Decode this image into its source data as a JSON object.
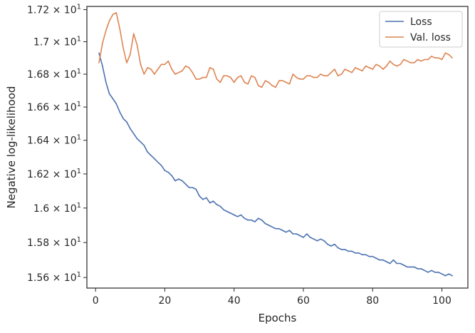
{
  "chart_data": {
    "type": "line",
    "title": "",
    "xlabel": "Epochs",
    "ylabel": "Negative log-likelihood",
    "xlim": [
      -2.5,
      107.5
    ],
    "ylim": [
      15.54,
      17.22
    ],
    "y_scale": "log",
    "grid": false,
    "legend_position": "top-right",
    "x_ticks": [
      {
        "value": 0,
        "label": "0"
      },
      {
        "value": 20,
        "label": "20"
      },
      {
        "value": 40,
        "label": "40"
      },
      {
        "value": 60,
        "label": "60"
      },
      {
        "value": 80,
        "label": "80"
      },
      {
        "value": 100,
        "label": "100"
      }
    ],
    "y_ticks": [
      {
        "value": 15.6,
        "mantissa": "1.56",
        "exponent": "1"
      },
      {
        "value": 15.8,
        "mantissa": "1.58",
        "exponent": "1"
      },
      {
        "value": 16.0,
        "mantissa": "1.6",
        "exponent": "1"
      },
      {
        "value": 16.2,
        "mantissa": "1.62",
        "exponent": "1"
      },
      {
        "value": 16.4,
        "mantissa": "1.64",
        "exponent": "1"
      },
      {
        "value": 16.6,
        "mantissa": "1.66",
        "exponent": "1"
      },
      {
        "value": 16.8,
        "mantissa": "1.68",
        "exponent": "1"
      },
      {
        "value": 17.0,
        "mantissa": "1.7",
        "exponent": "1"
      },
      {
        "value": 17.2,
        "mantissa": "1.72",
        "exponent": "1"
      }
    ],
    "series": [
      {
        "name": "Loss",
        "color": "#4c72b0",
        "x": [
          1,
          2,
          3,
          4,
          5,
          6,
          7,
          8,
          9,
          10,
          11,
          12,
          13,
          14,
          15,
          16,
          17,
          18,
          19,
          20,
          21,
          22,
          23,
          24,
          25,
          26,
          27,
          28,
          29,
          30,
          31,
          32,
          33,
          34,
          35,
          36,
          37,
          38,
          39,
          40,
          41,
          42,
          43,
          44,
          45,
          46,
          47,
          48,
          49,
          50,
          51,
          52,
          53,
          54,
          55,
          56,
          57,
          58,
          59,
          60,
          61,
          62,
          63,
          64,
          65,
          66,
          67,
          68,
          69,
          70,
          71,
          72,
          73,
          74,
          75,
          76,
          77,
          78,
          79,
          80,
          81,
          82,
          83,
          84,
          85,
          86,
          87,
          88,
          89,
          90,
          91,
          92,
          93,
          94,
          95,
          96,
          97,
          98,
          99,
          100,
          101,
          102,
          103
        ],
        "y": [
          16.93,
          16.85,
          16.75,
          16.68,
          16.65,
          16.62,
          16.57,
          16.53,
          16.51,
          16.47,
          16.44,
          16.41,
          16.39,
          16.37,
          16.33,
          16.31,
          16.29,
          16.27,
          16.25,
          16.22,
          16.21,
          16.19,
          16.16,
          16.17,
          16.16,
          16.14,
          16.12,
          16.12,
          16.11,
          16.07,
          16.05,
          16.06,
          16.03,
          16.04,
          16.02,
          16.01,
          15.99,
          15.98,
          15.97,
          15.96,
          15.95,
          15.96,
          15.94,
          15.93,
          15.93,
          15.92,
          15.94,
          15.93,
          15.91,
          15.9,
          15.89,
          15.88,
          15.88,
          15.87,
          15.86,
          15.87,
          15.85,
          15.85,
          15.84,
          15.83,
          15.85,
          15.83,
          15.82,
          15.81,
          15.82,
          15.81,
          15.79,
          15.78,
          15.79,
          15.77,
          15.76,
          15.76,
          15.75,
          15.75,
          15.74,
          15.74,
          15.73,
          15.73,
          15.72,
          15.72,
          15.71,
          15.7,
          15.7,
          15.69,
          15.68,
          15.7,
          15.68,
          15.68,
          15.67,
          15.66,
          15.66,
          15.66,
          15.65,
          15.65,
          15.64,
          15.63,
          15.64,
          15.63,
          15.63,
          15.62,
          15.61,
          15.62,
          15.61
        ]
      },
      {
        "name": "Val. loss",
        "color": "#dd8452",
        "x": [
          1,
          2,
          3,
          4,
          5,
          6,
          7,
          8,
          9,
          10,
          11,
          12,
          13,
          14,
          15,
          16,
          17,
          18,
          19,
          20,
          21,
          22,
          23,
          24,
          25,
          26,
          27,
          28,
          29,
          30,
          31,
          32,
          33,
          34,
          35,
          36,
          37,
          38,
          39,
          40,
          41,
          42,
          43,
          44,
          45,
          46,
          47,
          48,
          49,
          50,
          51,
          52,
          53,
          54,
          55,
          56,
          57,
          58,
          59,
          60,
          61,
          62,
          63,
          64,
          65,
          66,
          67,
          68,
          69,
          70,
          71,
          72,
          73,
          74,
          75,
          76,
          77,
          78,
          79,
          80,
          81,
          82,
          83,
          84,
          85,
          86,
          87,
          88,
          89,
          90,
          91,
          92,
          93,
          94,
          95,
          96,
          97,
          98,
          99,
          100,
          101,
          102,
          103
        ],
        "y": [
          16.87,
          16.99,
          17.07,
          17.13,
          17.17,
          17.18,
          17.08,
          16.96,
          16.87,
          16.92,
          17.05,
          16.98,
          16.86,
          16.8,
          16.84,
          16.83,
          16.8,
          16.83,
          16.86,
          16.86,
          16.88,
          16.83,
          16.8,
          16.81,
          16.82,
          16.85,
          16.84,
          16.81,
          16.77,
          16.77,
          16.78,
          16.78,
          16.84,
          16.83,
          16.77,
          16.75,
          16.79,
          16.79,
          16.78,
          16.75,
          16.78,
          16.79,
          16.75,
          16.74,
          16.79,
          16.78,
          16.73,
          16.72,
          16.76,
          16.75,
          16.73,
          16.72,
          16.76,
          16.76,
          16.75,
          16.74,
          16.8,
          16.78,
          16.77,
          16.77,
          16.79,
          16.79,
          16.78,
          16.78,
          16.8,
          16.79,
          16.79,
          16.81,
          16.83,
          16.79,
          16.8,
          16.83,
          16.82,
          16.81,
          16.84,
          16.83,
          16.82,
          16.85,
          16.84,
          16.83,
          16.86,
          16.85,
          16.83,
          16.85,
          16.88,
          16.86,
          16.85,
          16.86,
          16.89,
          16.88,
          16.87,
          16.87,
          16.89,
          16.88,
          16.89,
          16.89,
          16.91,
          16.9,
          16.9,
          16.89,
          16.93,
          16.92,
          16.9
        ]
      }
    ]
  }
}
